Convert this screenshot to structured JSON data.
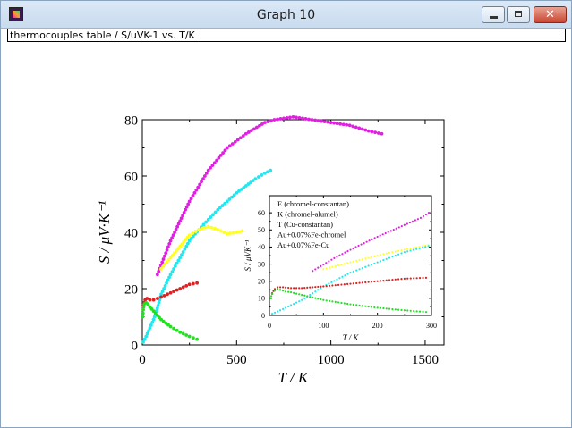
{
  "window": {
    "title": "Graph 10",
    "subtitle": "thermocouples table / S/uVK-1 vs. T/K",
    "icons": {
      "app": "origin-graph-icon",
      "minimize": "minimize-icon",
      "maximize": "maximize-icon",
      "close": "close-icon"
    },
    "close_glyph": "✕"
  },
  "chart_data": [
    {
      "type": "scatter",
      "xlabel": "T / K",
      "ylabel": "S / μV·K⁻¹",
      "xlim": [
        0,
        1600
      ],
      "ylim": [
        0,
        80
      ],
      "xticks": [
        0,
        500,
        1000,
        1500
      ],
      "yticks": [
        0,
        20,
        40,
        60,
        80
      ],
      "xtick_labels": [
        "0",
        "500",
        "1000",
        "1500"
      ],
      "ytick_labels": [
        "0",
        "20",
        "40",
        "60",
        "80"
      ],
      "grid": false,
      "legend": "none",
      "series": [
        {
          "color": "#e020e0",
          "x": [
            80,
            150,
            250,
            350,
            450,
            550,
            650,
            700,
            800,
            900,
            1000,
            1100,
            1200,
            1270
          ],
          "y": [
            25,
            37,
            51,
            62,
            70,
            75,
            79,
            80,
            81,
            80,
            79,
            78,
            76,
            75
          ]
        },
        {
          "color": "#20e8f0",
          "x": [
            5,
            20,
            40,
            60,
            80,
            100,
            150,
            200,
            250,
            300,
            350,
            400,
            450,
            500,
            550,
            600,
            650,
            680
          ],
          "y": [
            1,
            3,
            6,
            9,
            13,
            18,
            25,
            31,
            37,
            41,
            44.5,
            48,
            51,
            54,
            56.5,
            59,
            61,
            62
          ]
        },
        {
          "color": "#ffff20",
          "x": [
            100,
            150,
            200,
            250,
            300,
            350,
            400,
            450,
            500,
            530
          ],
          "y": [
            27,
            31,
            35,
            39,
            41,
            42,
            41,
            39.5,
            40,
            40.5
          ]
        },
        {
          "color": "#e02020",
          "x": [
            5,
            15,
            25,
            40,
            60,
            80,
            100,
            150,
            200,
            250,
            290
          ],
          "y": [
            14,
            16,
            16.5,
            16,
            16,
            16.5,
            17,
            18.5,
            20,
            21.5,
            22
          ]
        },
        {
          "color": "#20e020",
          "x": [
            2,
            5,
            10,
            20,
            30,
            40,
            60,
            80,
            100,
            150,
            200,
            250,
            290
          ],
          "y": [
            10,
            12.5,
            14.5,
            15,
            14.5,
            13.5,
            12,
            10.5,
            9,
            6.5,
            4.5,
            3,
            2
          ]
        }
      ]
    },
    {
      "type": "scatter",
      "xlabel": "T / K",
      "ylabel": "S / μVK⁻¹",
      "xlim": [
        0,
        300
      ],
      "ylim": [
        0,
        70
      ],
      "xticks": [
        0,
        100,
        200,
        300
      ],
      "yticks": [
        0,
        10,
        20,
        30,
        40,
        50,
        60
      ],
      "xtick_labels": [
        "0",
        "100",
        "200",
        "300"
      ],
      "ytick_labels": [
        "0",
        "10",
        "20",
        "30",
        "40",
        "50",
        "60"
      ],
      "grid": false,
      "legend": "top-left",
      "series": [
        {
          "name": "E (chromel-constantan)",
          "color": "#e020e0",
          "x": [
            80,
            120,
            160,
            200,
            240,
            280,
            300
          ],
          "y": [
            26,
            33.5,
            40,
            46,
            51.5,
            57,
            61
          ]
        },
        {
          "name": "K (chromel-alumel)",
          "color": "#ffff20",
          "x": [
            100,
            150,
            200,
            250,
            300
          ],
          "y": [
            27,
            31,
            35,
            38.5,
            41.5
          ]
        },
        {
          "name": "T (Cu-constantan)",
          "color": "#20e8f0",
          "x": [
            5,
            20,
            40,
            60,
            80,
            100,
            150,
            200,
            250,
            300
          ],
          "y": [
            1,
            3,
            6,
            9,
            13,
            17,
            25,
            31,
            37,
            41
          ]
        },
        {
          "name": "Au+0.07%Fe-chromel",
          "color": "#e02020",
          "x": [
            5,
            10,
            15,
            25,
            40,
            60,
            80,
            100,
            150,
            200,
            250,
            290
          ],
          "y": [
            13,
            15.5,
            16.5,
            16.5,
            16,
            16,
            16.5,
            17,
            18.5,
            20,
            21.5,
            22
          ]
        },
        {
          "name": "Au+0.07%Fe-Cu",
          "color": "#20e020",
          "x": [
            2,
            5,
            10,
            15,
            20,
            30,
            40,
            60,
            80,
            100,
            150,
            200,
            250,
            290
          ],
          "y": [
            10,
            12.5,
            14.5,
            15.5,
            15,
            14,
            13.5,
            12,
            10.5,
            9,
            6.5,
            4.5,
            3,
            2
          ]
        }
      ]
    }
  ]
}
